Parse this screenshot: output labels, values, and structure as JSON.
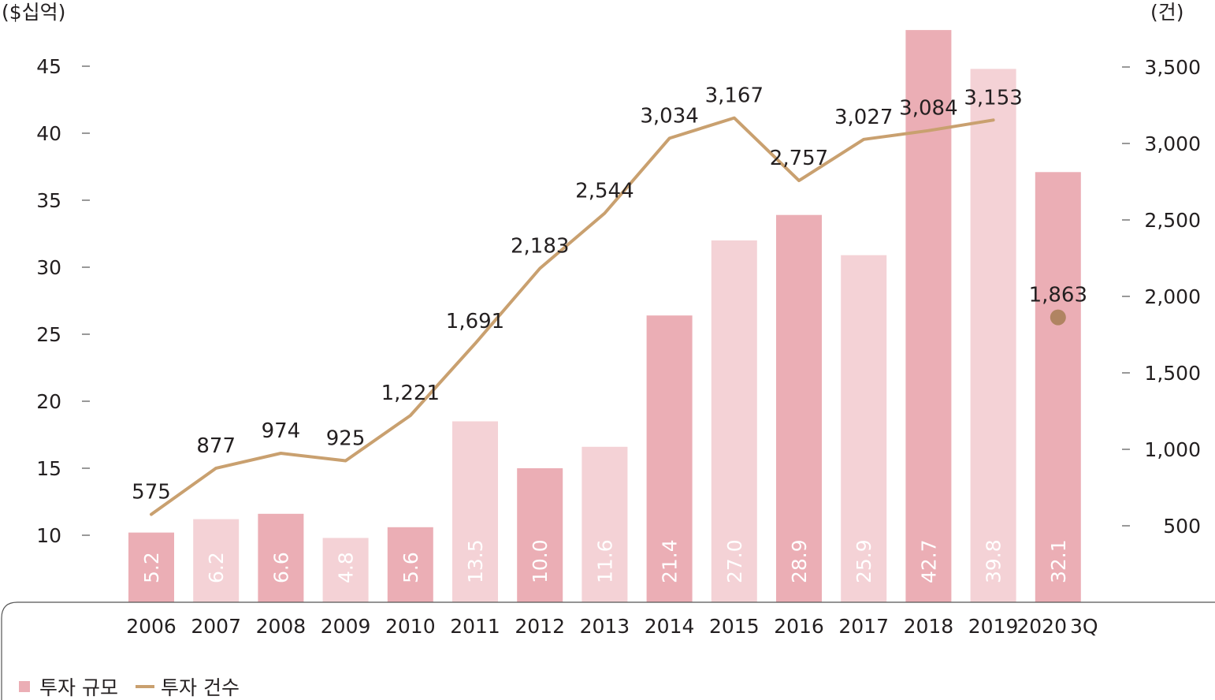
{
  "chart_data": {
    "type": "bar",
    "categories": [
      "2006",
      "2007",
      "2008",
      "2009",
      "2010",
      "2011",
      "2012",
      "2013",
      "2014",
      "2015",
      "2016",
      "2017",
      "2018",
      "2019",
      "2020 3Q"
    ],
    "series": [
      {
        "name": "투자 규모",
        "type": "bar",
        "axis": "left",
        "values": [
          5.2,
          6.2,
          6.6,
          4.8,
          5.6,
          13.5,
          10.0,
          11.6,
          21.4,
          27.0,
          28.9,
          25.9,
          42.7,
          39.8,
          32.1
        ],
        "labels": [
          "5.2",
          "6.2",
          "6.6",
          "4.8",
          "5.6",
          "13.5",
          "10.0",
          "11.6",
          "21.4",
          "27.0",
          "28.9",
          "25.9",
          "42.7",
          "39.8",
          "32.1"
        ]
      },
      {
        "name": "투자 건수",
        "type": "line",
        "axis": "right",
        "values": [
          575,
          877,
          974,
          925,
          1221,
          1691,
          2183,
          2544,
          3034,
          3167,
          2757,
          3027,
          3084,
          3153,
          1863
        ],
        "labels": [
          "575",
          "877",
          "974",
          "925",
          "1,221",
          "1,691",
          "2,183",
          "2,544",
          "3,034",
          "3,167",
          "2,757",
          "3,027",
          "3,084",
          "3,153",
          "1,863"
        ]
      }
    ],
    "y_left": {
      "unit": "($십억)",
      "ticks": [
        10,
        15,
        20,
        25,
        30,
        35,
        40,
        45
      ],
      "tick_labels": [
        "10",
        "15",
        "20",
        "25",
        "30",
        "35",
        "40",
        "45"
      ],
      "range": [
        5,
        45
      ]
    },
    "y_right": {
      "unit": "(건)",
      "ticks": [
        500,
        1000,
        1500,
        2000,
        2500,
        3000,
        3500
      ],
      "tick_labels": [
        "500",
        "1,000",
        "1,500",
        "2,000",
        "2,500",
        "3,000",
        "3,500"
      ],
      "range": [
        0,
        3500
      ]
    },
    "x_tick_labels": [
      "2006",
      "2007",
      "2008",
      "2009",
      "2010",
      "2011",
      "2012",
      "2013",
      "2014",
      "2015",
      "2016",
      "2017",
      "2018",
      "2019",
      "2020",
      "3Q"
    ],
    "colors": {
      "bar_dark": "#ebaeb5",
      "bar_light": "#f4d2d6",
      "line": "#c9a06f",
      "marker": "#b08462",
      "text": "#231f20",
      "axis": "#555555"
    },
    "legend": {
      "position": "bottom-left",
      "items": [
        {
          "label": "투자 규모",
          "symbol": "square",
          "color": "#ebaeb5"
        },
        {
          "label": "투자 건수",
          "symbol": "line",
          "color": "#c9a06f"
        }
      ]
    },
    "grid": false
  }
}
